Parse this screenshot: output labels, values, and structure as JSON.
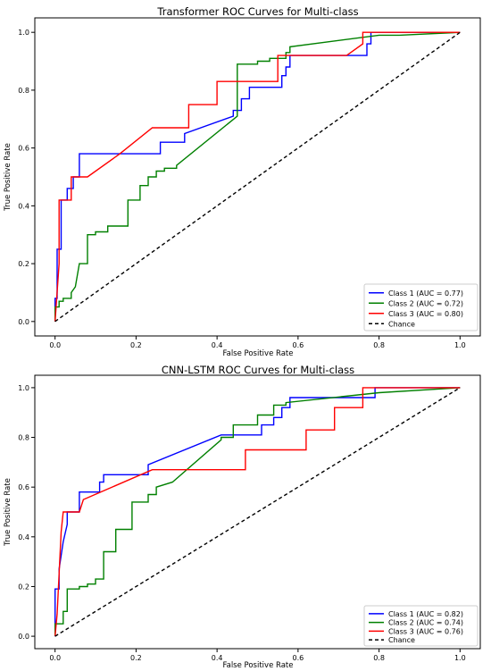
{
  "chart_data": [
    {
      "type": "line",
      "title": "Transformer ROC Curves for Multi-class",
      "xlabel": "False Positive Rate",
      "ylabel": "True Positive Rate",
      "xlim": [
        -0.05,
        1.05
      ],
      "ylim": [
        -0.05,
        1.05
      ],
      "xticks": [
        "0.0",
        "0.2",
        "0.4",
        "0.6",
        "0.8",
        "1.0"
      ],
      "yticks": [
        "0.0",
        "0.2",
        "0.4",
        "0.6",
        "0.8",
        "1.0"
      ],
      "grid": false,
      "legend_position": "lower right",
      "series": [
        {
          "name": "Class 1 (AUC = 0.77)",
          "color": "#0000ff",
          "x": [
            0,
            0,
            0.005,
            0.005,
            0.015,
            0.015,
            0.03,
            0.03,
            0.045,
            0.045,
            0.06,
            0.06,
            0.26,
            0.26,
            0.32,
            0.32,
            0.44,
            0.44,
            0.46,
            0.46,
            0.48,
            0.48,
            0.56,
            0.56,
            0.57,
            0.57,
            0.58,
            0.58,
            0.77,
            0.77,
            0.78,
            0.78,
            1.0
          ],
          "y": [
            0,
            0.08,
            0.08,
            0.25,
            0.25,
            0.42,
            0.42,
            0.46,
            0.46,
            0.5,
            0.5,
            0.58,
            0.58,
            0.62,
            0.62,
            0.65,
            0.71,
            0.73,
            0.73,
            0.77,
            0.77,
            0.81,
            0.81,
            0.85,
            0.85,
            0.88,
            0.88,
            0.92,
            0.92,
            0.96,
            0.96,
            1.0,
            1.0
          ]
        },
        {
          "name": "Class 2 (AUC = 0.72)",
          "color": "#008000",
          "x": [
            0,
            0,
            0.01,
            0.01,
            0.02,
            0.02,
            0.04,
            0.04,
            0.05,
            0.06,
            0.08,
            0.08,
            0.1,
            0.1,
            0.13,
            0.13,
            0.18,
            0.18,
            0.21,
            0.21,
            0.23,
            0.23,
            0.25,
            0.25,
            0.27,
            0.27,
            0.3,
            0.3,
            0.45,
            0.45,
            0.5,
            0.5,
            0.53,
            0.53,
            0.57,
            0.57,
            0.58,
            0.58,
            0.8,
            0.85,
            1.0
          ],
          "y": [
            0,
            0.05,
            0.05,
            0.07,
            0.07,
            0.08,
            0.08,
            0.1,
            0.12,
            0.2,
            0.2,
            0.3,
            0.3,
            0.31,
            0.31,
            0.33,
            0.33,
            0.42,
            0.42,
            0.47,
            0.47,
            0.5,
            0.5,
            0.52,
            0.52,
            0.53,
            0.53,
            0.54,
            0.71,
            0.89,
            0.89,
            0.9,
            0.9,
            0.91,
            0.91,
            0.93,
            0.93,
            0.95,
            0.99,
            0.99,
            1.0
          ]
        },
        {
          "name": "Class 3 (AUC = 0.80)",
          "color": "#ff0000",
          "x": [
            0,
            0.01,
            0.01,
            0.04,
            0.04,
            0.06,
            0.06,
            0.08,
            0.16,
            0.24,
            0.24,
            0.33,
            0.33,
            0.4,
            0.4,
            0.55,
            0.55,
            0.6,
            0.6,
            0.72,
            0.76,
            0.76,
            1.0
          ],
          "y": [
            0,
            0.2,
            0.42,
            0.42,
            0.5,
            0.5,
            0.5,
            0.5,
            0.58,
            0.67,
            0.67,
            0.67,
            0.75,
            0.75,
            0.83,
            0.83,
            0.92,
            0.92,
            0.92,
            0.92,
            0.96,
            1.0,
            1.0
          ]
        },
        {
          "name": "Chance",
          "color": "#000000",
          "dashed": true,
          "x": [
            0,
            1
          ],
          "y": [
            0,
            1
          ]
        }
      ]
    },
    {
      "type": "line",
      "title": "CNN-LSTM ROC Curves for Multi-class",
      "xlabel": "False Positive Rate",
      "ylabel": "True Positive Rate",
      "xlim": [
        -0.05,
        1.05
      ],
      "ylim": [
        -0.05,
        1.05
      ],
      "xticks": [
        "0.0",
        "0.2",
        "0.4",
        "0.6",
        "0.8",
        "1.0"
      ],
      "yticks": [
        "0.0",
        "0.2",
        "0.4",
        "0.6",
        "0.8",
        "1.0"
      ],
      "grid": false,
      "legend_position": "lower right",
      "series": [
        {
          "name": "Class 1 (AUC = 0.82)",
          "color": "#0000ff",
          "x": [
            0,
            0,
            0.01,
            0.01,
            0.02,
            0.03,
            0.03,
            0.06,
            0.06,
            0.11,
            0.11,
            0.12,
            0.12,
            0.23,
            0.23,
            0.41,
            0.51,
            0.51,
            0.54,
            0.54,
            0.56,
            0.56,
            0.58,
            0.58,
            0.63,
            0.63,
            0.79,
            0.79,
            1.0
          ],
          "y": [
            0,
            0.19,
            0.19,
            0.27,
            0.38,
            0.45,
            0.5,
            0.5,
            0.58,
            0.58,
            0.62,
            0.62,
            0.65,
            0.65,
            0.69,
            0.81,
            0.81,
            0.85,
            0.85,
            0.88,
            0.88,
            0.92,
            0.92,
            0.96,
            0.96,
            0.96,
            0.96,
            1.0,
            1.0
          ]
        },
        {
          "name": "Class 2 (AUC = 0.74)",
          "color": "#008000",
          "x": [
            0,
            0,
            0.02,
            0.02,
            0.03,
            0.03,
            0.06,
            0.06,
            0.08,
            0.08,
            0.1,
            0.1,
            0.12,
            0.12,
            0.15,
            0.15,
            0.19,
            0.19,
            0.23,
            0.23,
            0.25,
            0.25,
            0.29,
            0.41,
            0.41,
            0.44,
            0.44,
            0.5,
            0.5,
            0.54,
            0.54,
            0.57,
            0.57,
            0.8,
            1.0
          ],
          "y": [
            0,
            0.05,
            0.05,
            0.1,
            0.1,
            0.19,
            0.19,
            0.2,
            0.2,
            0.21,
            0.21,
            0.23,
            0.23,
            0.34,
            0.34,
            0.43,
            0.43,
            0.54,
            0.54,
            0.57,
            0.57,
            0.6,
            0.62,
            0.79,
            0.8,
            0.8,
            0.85,
            0.85,
            0.89,
            0.89,
            0.93,
            0.93,
            0.94,
            0.98,
            1.0
          ]
        },
        {
          "name": "Class 3 (AUC = 0.76)",
          "color": "#ff0000",
          "x": [
            0,
            0.005,
            0.005,
            0.015,
            0.015,
            0.02,
            0.02,
            0.04,
            0.04,
            0.06,
            0.07,
            0.24,
            0.47,
            0.47,
            0.62,
            0.62,
            0.69,
            0.69,
            0.76,
            0.76,
            1.0
          ],
          "y": [
            0,
            0.09,
            0.09,
            0.42,
            0.42,
            0.5,
            0.5,
            0.5,
            0.5,
            0.5,
            0.55,
            0.67,
            0.67,
            0.75,
            0.75,
            0.83,
            0.83,
            0.92,
            0.92,
            1.0,
            1.0
          ]
        },
        {
          "name": "Chance",
          "color": "#000000",
          "dashed": true,
          "x": [
            0,
            1
          ],
          "y": [
            0,
            1
          ]
        }
      ]
    }
  ]
}
